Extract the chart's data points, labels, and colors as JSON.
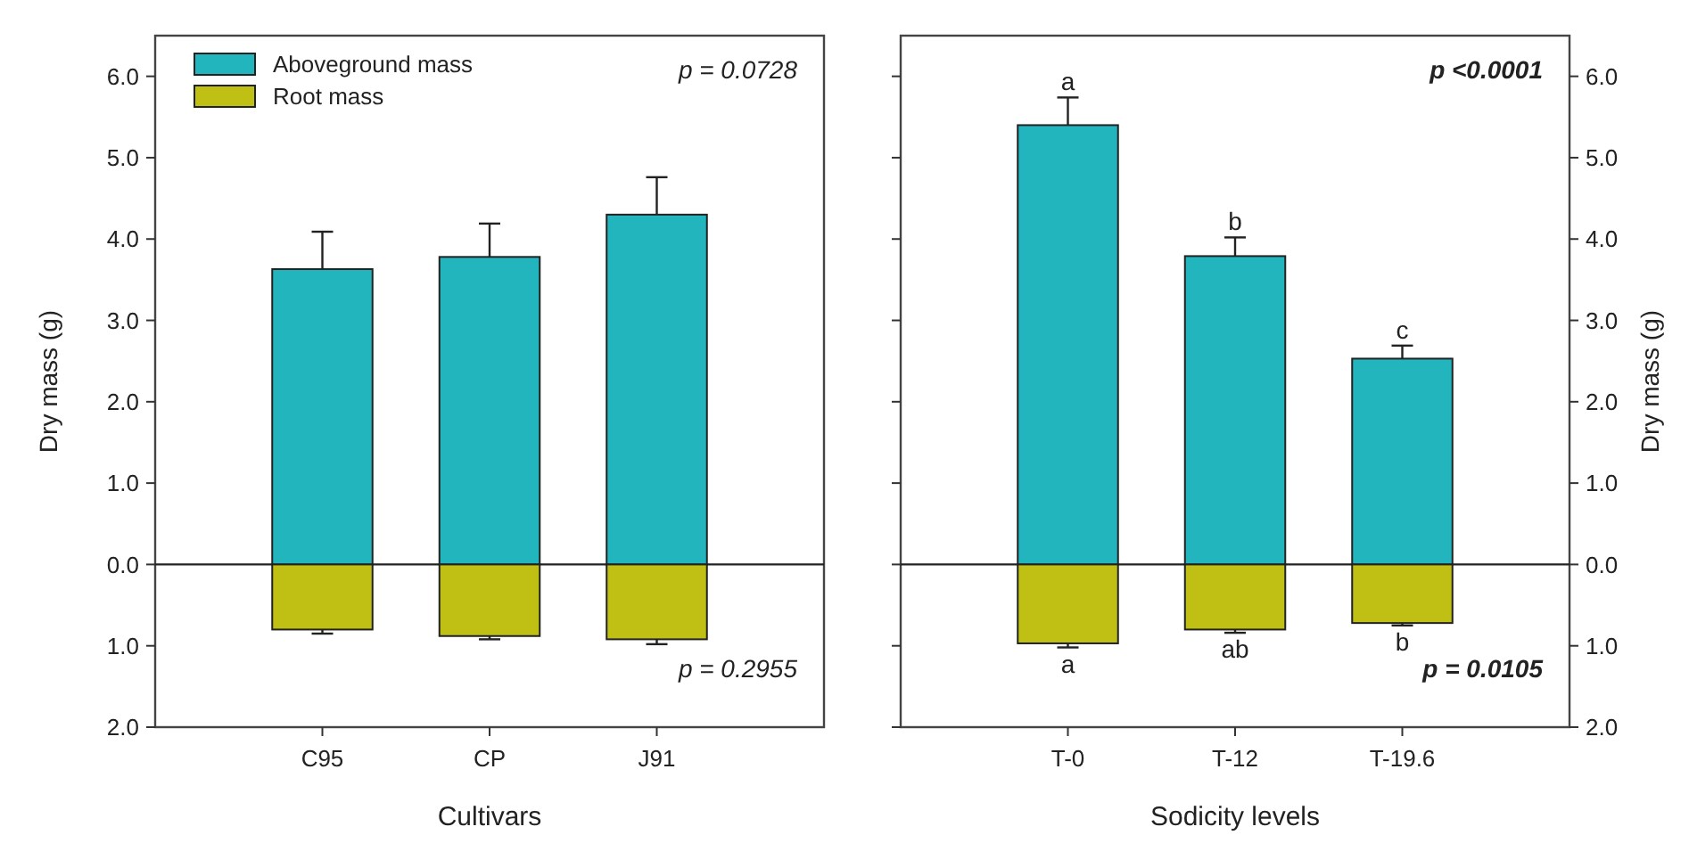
{
  "chart_data": [
    {
      "type": "bar",
      "xlabel": "Cultivars",
      "ylabel": "Dry mass (g)",
      "categories": [
        "C95",
        "CP",
        "J91"
      ],
      "series": [
        {
          "name": "Aboveground mass",
          "color": "#22b5bd",
          "values": [
            3.63,
            3.78,
            4.3
          ],
          "errors": [
            0.46,
            0.41,
            0.46
          ]
        },
        {
          "name": "Root mass",
          "color": "#bfbf14",
          "values": [
            -0.8,
            -0.88,
            -0.92
          ],
          "errors": [
            0.05,
            0.04,
            0.06
          ]
        }
      ],
      "ylim": [
        -2,
        6.5
      ],
      "yticks": [
        {
          "value": -2,
          "label": "2.0"
        },
        {
          "value": -1,
          "label": "1.0"
        },
        {
          "value": 0,
          "label": "0.0"
        },
        {
          "value": 1,
          "label": "1.0"
        },
        {
          "value": 2,
          "label": "2.0"
        },
        {
          "value": 3,
          "label": "3.0"
        },
        {
          "value": 4,
          "label": "4.0"
        },
        {
          "value": 5,
          "label": "5.0"
        },
        {
          "value": 6,
          "label": "6.0"
        }
      ],
      "ref_lines": [
        {
          "axis": "y",
          "value": 0
        }
      ],
      "stacked": true,
      "legend": "top left",
      "annotations": [
        "p = 0.0728",
        "p = 0.2955"
      ]
    },
    {
      "type": "bar",
      "xlabel": "Sodicity levels",
      "y2label": "Dry mass (g)",
      "categories": [
        "T-0",
        "T-12",
        "T-19.6"
      ],
      "series": [
        {
          "color": "#22b5bd",
          "values": [
            5.4,
            3.79,
            2.53
          ],
          "errors": [
            0.34,
            0.23,
            0.16
          ],
          "axis": "y2"
        },
        {
          "color": "#bfbf14",
          "values": [
            -0.97,
            -0.8,
            -0.72
          ],
          "errors": [
            0.05,
            0.04,
            0.03
          ],
          "axis": "y2"
        }
      ],
      "stacked": true,
      "y2lim": [
        -2,
        6.5
      ],
      "y2ticks": [
        {
          "value": -2,
          "label": "2.0"
        },
        {
          "value": -1,
          "label": "1.0"
        },
        {
          "value": 0,
          "label": "0.0"
        },
        {
          "value": 1,
          "label": "1.0"
        },
        {
          "value": 2,
          "label": "2.0"
        },
        {
          "value": 3,
          "label": "3.0"
        },
        {
          "value": 4,
          "label": "4.0"
        },
        {
          "value": 5,
          "label": "5.0"
        },
        {
          "value": 6,
          "label": "6.0"
        }
      ],
      "ref_lines": [
        {
          "axis": "y2",
          "value": 0
        }
      ],
      "annotations": [
        "p <0.0001",
        "p = 0.0105",
        "a",
        "b",
        "c",
        "a",
        "ab",
        "b"
      ]
    }
  ]
}
